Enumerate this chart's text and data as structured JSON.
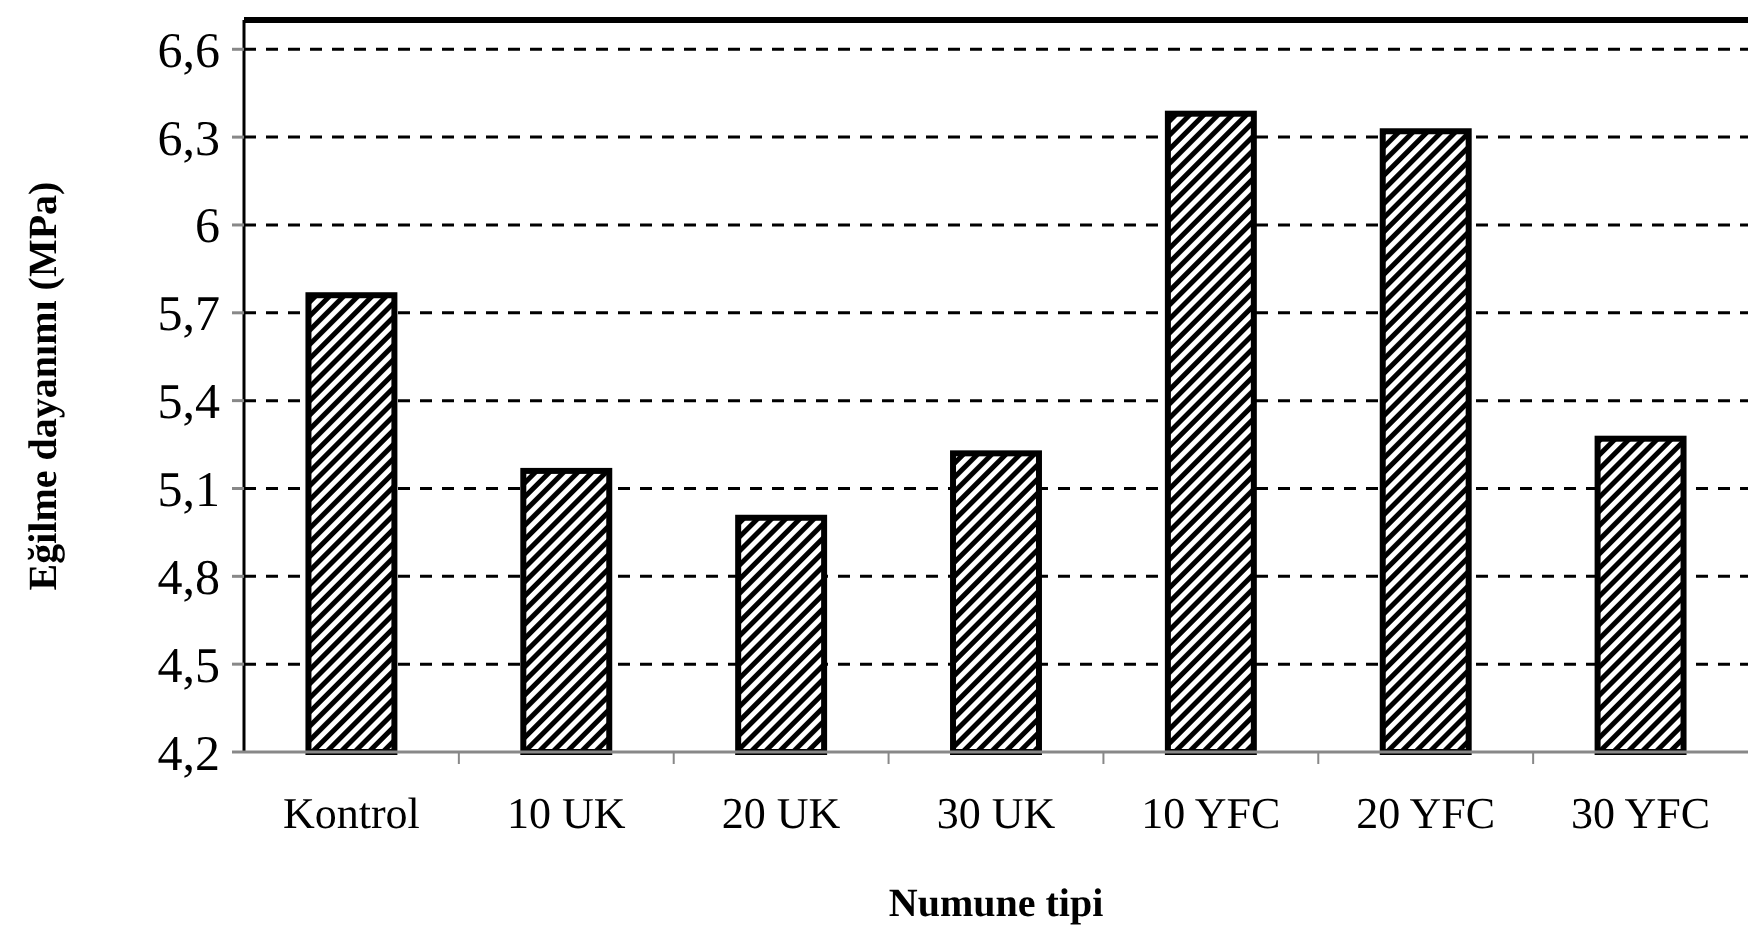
{
  "chart_data": {
    "type": "bar",
    "xlabel": "Numune tipi",
    "ylabel": "Eğilme dayanımı (MPa)",
    "categories": [
      "Kontrol",
      "10 UK",
      "20 UK",
      "30 UK",
      "10 YFC",
      "20 YFC",
      "30 YFC"
    ],
    "values": [
      5.76,
      5.16,
      5.0,
      5.22,
      6.38,
      6.32,
      5.27
    ],
    "color": "#000000",
    "ylim": [
      4.2,
      6.7
    ],
    "yticks": [
      {
        "value": 4.2,
        "label": "4,2"
      },
      {
        "value": 4.5,
        "label": "4,5"
      },
      {
        "value": 4.8,
        "label": "4,8"
      },
      {
        "value": 5.1,
        "label": "5,1"
      },
      {
        "value": 5.4,
        "label": "5,4"
      },
      {
        "value": 5.7,
        "label": "5,7"
      },
      {
        "value": 6,
        "label": "6"
      },
      {
        "value": 6.3,
        "label": "6,3"
      },
      {
        "value": 6.6,
        "label": "6,6"
      }
    ],
    "grid": "y"
  }
}
